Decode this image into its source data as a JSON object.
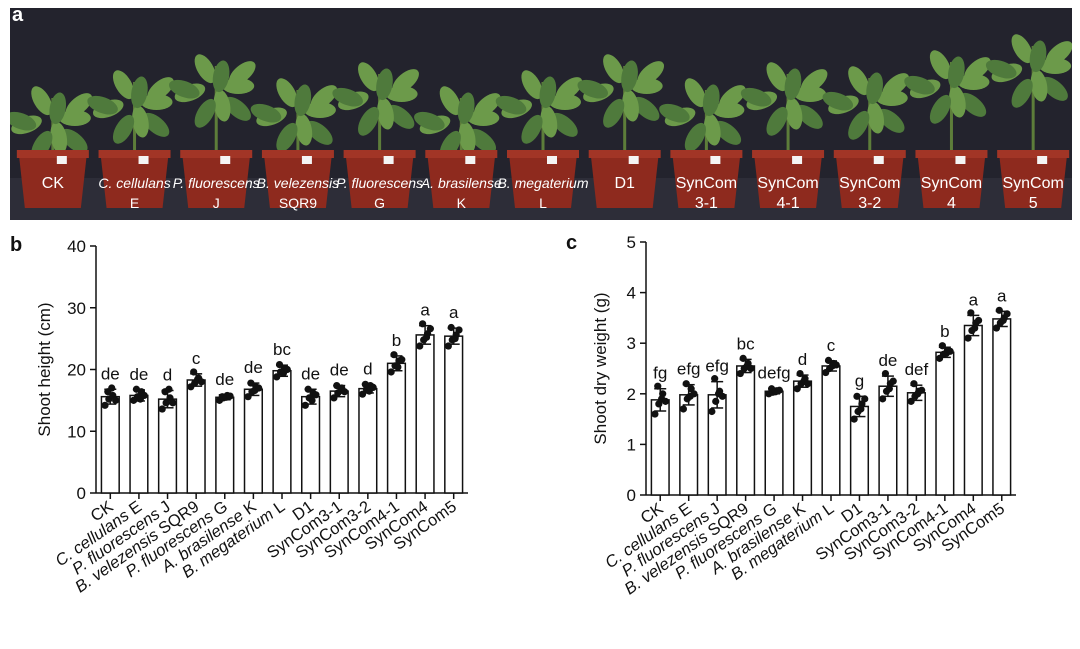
{
  "panels": {
    "a": "a",
    "b": "b",
    "c": "c"
  },
  "photo": {
    "plant_labels": [
      {
        "lines": [
          "CK"
        ],
        "italic": false
      },
      {
        "lines": [
          "C. cellulans",
          "E"
        ],
        "italic": true
      },
      {
        "lines": [
          "P. fluorescens",
          "J"
        ],
        "italic": true
      },
      {
        "lines": [
          "B. velezensis",
          "SQR9"
        ],
        "italic": true
      },
      {
        "lines": [
          "P. fluorescens",
          "G"
        ],
        "italic": true
      },
      {
        "lines": [
          "A. brasilense",
          "K"
        ],
        "italic": true
      },
      {
        "lines": [
          "B. megaterium",
          "L"
        ],
        "italic": true
      },
      {
        "lines": [
          "D1"
        ],
        "italic": false
      },
      {
        "lines": [
          "SynCom",
          "3-1"
        ],
        "italic": false
      },
      {
        "lines": [
          "SynCom",
          "4-1"
        ],
        "italic": false
      },
      {
        "lines": [
          "SynCom",
          "3-2"
        ],
        "italic": false
      },
      {
        "lines": [
          "SynCom",
          "4"
        ],
        "italic": false
      },
      {
        "lines": [
          "SynCom",
          "5"
        ],
        "italic": false
      }
    ],
    "colors": {
      "background": "#23232d",
      "pot": "#8e2a1e",
      "leaf": "#4f7a3c",
      "stage": "#bdbdbd"
    }
  },
  "chart_data": [
    {
      "type": "bar",
      "panel": "b",
      "title": "",
      "xlabel": "",
      "ylabel": "Shoot height (cm)",
      "ylim": [
        0,
        40
      ],
      "yticks": [
        0,
        10,
        20,
        30,
        40
      ],
      "categories": [
        "CK",
        "C. cellulans E",
        "P. fluorescens J",
        "B. velezensis SQR9",
        "P. fluorescens G",
        "A. brasilense K",
        "B. megaterium L",
        "D1",
        "SynCom3-1",
        "SynCom3-2",
        "SynCom4-1",
        "SynCom4",
        "SynCom5"
      ],
      "italic_prefix": [
        false,
        true,
        true,
        true,
        true,
        true,
        true,
        false,
        false,
        false,
        false,
        false,
        false
      ],
      "values": [
        15.6,
        15.8,
        15.2,
        18.3,
        15.5,
        16.8,
        19.8,
        15.6,
        16.5,
        16.9,
        21.0,
        25.6,
        25.4
      ],
      "errors": [
        1.2,
        0.9,
        1.4,
        1.0,
        0.4,
        1.0,
        0.9,
        1.2,
        0.9,
        0.7,
        1.2,
        1.5,
        1.3
      ],
      "points": [
        [
          14.2,
          15.2,
          15.8,
          16.4,
          17.0,
          15.0
        ],
        [
          15.0,
          15.6,
          16.4,
          16.8,
          15.2,
          15.8
        ],
        [
          13.6,
          14.6,
          15.4,
          16.4,
          16.8,
          14.6
        ],
        [
          17.2,
          17.8,
          18.6,
          19.6,
          18.4,
          18.0
        ],
        [
          15.0,
          15.4,
          15.8,
          15.6,
          15.5,
          15.7
        ],
        [
          15.6,
          16.4,
          17.2,
          17.8,
          16.6,
          17.0
        ],
        [
          18.8,
          19.6,
          20.2,
          20.8,
          19.4,
          20.0
        ],
        [
          14.2,
          15.4,
          16.2,
          16.8,
          15.0,
          15.9
        ],
        [
          15.4,
          16.2,
          17.0,
          17.4,
          16.6,
          16.4
        ],
        [
          16.0,
          16.8,
          17.4,
          17.6,
          16.5,
          17.1
        ],
        [
          19.6,
          20.6,
          21.4,
          22.4,
          20.4,
          21.6
        ],
        [
          23.8,
          24.8,
          25.8,
          27.4,
          25.2,
          26.6
        ],
        [
          23.8,
          24.8,
          25.6,
          26.8,
          25.0,
          26.4
        ]
      ],
      "letters": [
        "de",
        "de",
        "d",
        "c",
        "de",
        "de",
        "bc",
        "de",
        "de",
        "d",
        "b",
        "a",
        "a"
      ],
      "legend": "none",
      "grid": false,
      "colors": {
        "bar_fill": "#ffffff",
        "bar_stroke": "#111111",
        "point": "#111111"
      }
    },
    {
      "type": "bar",
      "panel": "c",
      "title": "",
      "xlabel": "",
      "ylabel": "Shoot dry weight (g)",
      "ylim": [
        0,
        5
      ],
      "yticks": [
        0,
        1,
        2,
        3,
        4,
        5
      ],
      "categories": [
        "CK",
        "C. cellulans E",
        "P. fluorescens J",
        "B. velezensis SQR9",
        "P. fluorescens G",
        "A. brasilense K",
        "B. megaterium L",
        "D1",
        "SynCom3-1",
        "SynCom3-2",
        "SynCom4-1",
        "SynCom4",
        "SynCom5"
      ],
      "italic_prefix": [
        false,
        true,
        true,
        true,
        true,
        true,
        true,
        false,
        false,
        false,
        false,
        false,
        false
      ],
      "values": [
        1.88,
        1.98,
        1.98,
        2.55,
        2.05,
        2.25,
        2.55,
        1.75,
        2.15,
        2.02,
        2.82,
        3.35,
        3.48
      ],
      "errors": [
        0.22,
        0.2,
        0.26,
        0.13,
        0.05,
        0.12,
        0.1,
        0.2,
        0.2,
        0.15,
        0.1,
        0.2,
        0.15
      ],
      "points": [
        [
          1.6,
          1.8,
          2.0,
          2.15,
          1.9,
          1.85
        ],
        [
          1.7,
          1.9,
          2.1,
          2.2,
          1.95,
          2.0
        ],
        [
          1.65,
          1.85,
          2.05,
          2.3,
          2.0,
          1.95
        ],
        [
          2.4,
          2.5,
          2.6,
          2.7,
          2.55,
          2.5
        ],
        [
          2.0,
          2.03,
          2.06,
          2.1,
          2.04,
          2.07
        ],
        [
          2.1,
          2.2,
          2.3,
          2.4,
          2.25,
          2.2
        ],
        [
          2.42,
          2.5,
          2.6,
          2.66,
          2.55,
          2.57
        ],
        [
          1.5,
          1.65,
          1.8,
          1.95,
          1.7,
          1.9
        ],
        [
          1.9,
          2.05,
          2.2,
          2.4,
          2.1,
          2.25
        ],
        [
          1.85,
          1.95,
          2.05,
          2.2,
          2.0,
          2.07
        ],
        [
          2.7,
          2.78,
          2.85,
          2.95,
          2.8,
          2.84
        ],
        [
          3.1,
          3.25,
          3.4,
          3.6,
          3.3,
          3.45
        ],
        [
          3.3,
          3.4,
          3.5,
          3.65,
          3.45,
          3.58
        ]
      ],
      "letters": [
        "fg",
        "efg",
        "efg",
        "bc",
        "defg",
        "d",
        "c",
        "g",
        "de",
        "def",
        "b",
        "a",
        "a"
      ],
      "legend": "none",
      "grid": false,
      "colors": {
        "bar_fill": "#ffffff",
        "bar_stroke": "#111111",
        "point": "#111111"
      }
    }
  ]
}
